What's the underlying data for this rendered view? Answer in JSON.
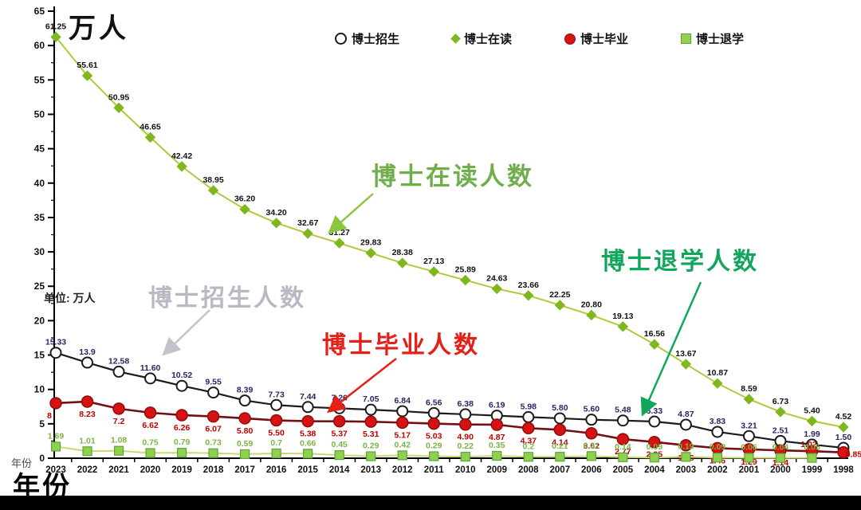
{
  "page": {
    "y_axis_unit_title": "万人",
    "unit_note": "单位: 万人",
    "x_axis_label_small": "年份",
    "x_axis_label_big": "年份"
  },
  "legend": [
    {
      "label": "博士招生",
      "marker": "open-circle"
    },
    {
      "label": "博士在读",
      "marker": "diamond"
    },
    {
      "label": "博士毕业",
      "marker": "circle"
    },
    {
      "label": "博士退学",
      "marker": "square"
    }
  ],
  "annotations": {
    "zaidu": {
      "text": "博士在读人数",
      "color": "#6fae4b",
      "arrow_color": "#8cc63f"
    },
    "zhaosheng": {
      "text": "博士招生人数",
      "color": "#b9b9c3",
      "arrow_color": "#c3c3cc"
    },
    "biye": {
      "text": "博士毕业人数",
      "color": "#e32119",
      "arrow_color": "#e32119"
    },
    "tuixue": {
      "text": "博士退学人数",
      "color": "#12a65c",
      "arrow_color": "#12a65c"
    }
  },
  "chart_data": {
    "type": "line",
    "title": "",
    "xlabel": "年份",
    "ylabel": "万人",
    "ylim": [
      0,
      65
    ],
    "y_tick_step": 5,
    "grid": false,
    "legend_position": "top",
    "x_years": [
      2023,
      2022,
      2021,
      2020,
      2019,
      2018,
      2017,
      2016,
      2015,
      2014,
      2013,
      2012,
      2011,
      2010,
      2009,
      2008,
      2007,
      2006,
      2005,
      2004,
      2003,
      2002,
      2001,
      2000,
      1999,
      1998
    ],
    "series": [
      {
        "name": "博士招生",
        "marker": "open-circle",
        "line_color": "#1b1b1b",
        "marker_fill": "#ffffff",
        "marker_edge": "#1b1b1b",
        "label_color": "#2b2464",
        "label_side": "above",
        "values": [
          15.33,
          13.9,
          12.58,
          11.6,
          10.52,
          9.55,
          8.39,
          7.73,
          7.44,
          7.26,
          7.05,
          6.84,
          6.56,
          6.38,
          6.19,
          5.98,
          5.8,
          5.6,
          5.48,
          5.33,
          4.87,
          3.83,
          3.21,
          2.51,
          1.99,
          1.5
        ],
        "labels": [
          "15.33",
          "13.9",
          "12.58",
          "11.60",
          "10.52",
          "9.55",
          "8.39",
          "7.73",
          "7.44",
          "7.26",
          "7.05",
          "6.84",
          "6.56",
          "6.38",
          "6.19",
          "5.98",
          "5.80",
          "5.60",
          "5.48",
          "5.33",
          "4.87",
          "3.83",
          "3.21",
          "2.51",
          "1.99",
          "1.50"
        ]
      },
      {
        "name": "博士在读",
        "marker": "diamond",
        "line_color": "#b3c83b",
        "marker_fill": "#80b71e",
        "marker_edge": "#80b71e",
        "label_color": "#111111",
        "label_side": "above",
        "values": [
          61.25,
          55.61,
          50.95,
          46.65,
          42.42,
          38.95,
          36.2,
          34.2,
          32.67,
          31.27,
          29.83,
          28.38,
          27.13,
          25.89,
          24.63,
          23.66,
          22.25,
          20.8,
          19.13,
          16.56,
          13.67,
          10.87,
          8.59,
          6.73,
          5.4,
          4.52
        ],
        "labels": [
          "61.25",
          "55.61",
          "50.95",
          "46.65",
          "42.42",
          "38.95",
          "36.20",
          "34.20",
          "32.67",
          "31.27",
          "29.83",
          "28.38",
          "27.13",
          "25.89",
          "24.63",
          "23.66",
          "22.25",
          "20.80",
          "19.13",
          "16.56",
          "13.67",
          "10.87",
          "8.59",
          "6.73",
          "5.40",
          "4.52"
        ]
      },
      {
        "name": "博士毕业",
        "marker": "circle",
        "line_color": "#741014",
        "marker_fill": "#d61212",
        "marker_edge": "#8e0e0e",
        "label_color": "#c00000",
        "label_side": "below",
        "values": [
          8,
          8.23,
          7.2,
          6.62,
          6.26,
          6.07,
          5.8,
          5.5,
          5.38,
          5.37,
          5.31,
          5.17,
          5.03,
          4.9,
          4.87,
          4.37,
          4.14,
          3.62,
          2.77,
          2.35,
          1.88,
          1.46,
          1.29,
          1.14,
          1.02,
          0.85
        ],
        "labels": [
          "8",
          "8.23",
          "7.2",
          "6.62",
          "6.26",
          "6.07",
          "5.80",
          "5.50",
          "5.38",
          "5.37",
          "5.31",
          "5.17",
          "5.03",
          "4.90",
          "4.87",
          "4.37",
          "4.14",
          "3.62",
          "2.77",
          "2.35",
          "1.88",
          "1.46",
          "1.29",
          "1.14",
          "1.02",
          "0.85"
        ],
        "label_overrides": {
          "0": [
            -8,
            0
          ],
          "24": [
            -4,
            -24
          ],
          "25": [
            13,
            -13
          ]
        }
      },
      {
        "name": "博士退学",
        "marker": "square",
        "line_color": "#c9d775",
        "marker_fill": "#8fd14f",
        "marker_edge": "#5da33a",
        "label_color": "#7cb342",
        "label_side": "above",
        "values": [
          1.69,
          1.01,
          1.08,
          0.75,
          0.79,
          0.73,
          0.59,
          0.7,
          0.66,
          0.45,
          0.29,
          0.42,
          0.29,
          0.22,
          0.35,
          0.2,
          0.21,
          0.31,
          0.14,
          0.09,
          0.19,
          0.09,
          0.06,
          0.04,
          0.05
        ],
        "labels": [
          "1.69",
          "1.01",
          "1.08",
          "0.75",
          "0.79",
          "0.73",
          "0.59",
          "0.7",
          "0.66",
          "0.45",
          "0.29",
          "0.42",
          "0.29",
          "0.22",
          "0.35",
          "0.2",
          "0.21",
          "0.31",
          "0.14",
          "0.09",
          "0.19",
          "0.09",
          "0.06",
          "0.04",
          "0.05"
        ]
      }
    ]
  }
}
